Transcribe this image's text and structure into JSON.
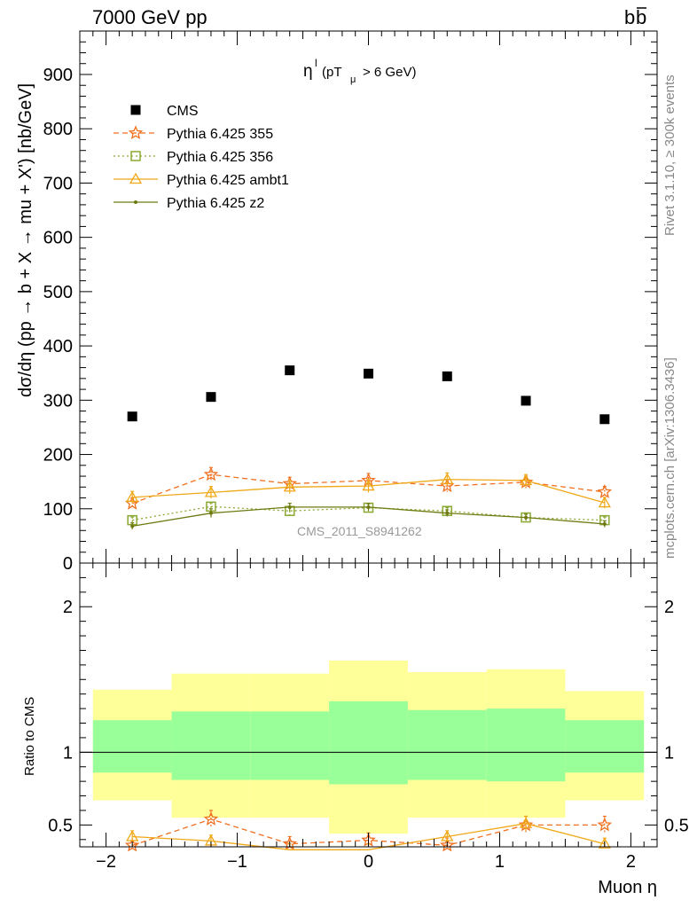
{
  "header": {
    "left": "7000 GeV pp",
    "right": "b",
    "right_bar": "b"
  },
  "side": {
    "rivet": "Rivet 3.1.10, ≥ 300k events",
    "mcplots": "mcplots.cern.ch [arXiv:1306.3436]"
  },
  "watermark": "CMS_2011_S8941262",
  "cut_label": {
    "eta": "η",
    "sup": "l",
    "text": "(pT",
    "sub": "μ",
    "rest": ">  6 GeV)"
  },
  "chart_data": [
    {
      "type": "scatter",
      "ylabel": "dσ/dη (pp → b + X → mu + X') [nb/GeV]",
      "xlim": [
        -2.2,
        2.2
      ],
      "ylim": [
        0,
        980
      ],
      "yticks": [
        0,
        100,
        200,
        300,
        400,
        500,
        600,
        700,
        800,
        900
      ],
      "ytick_labels": [
        "0",
        "100",
        "200",
        "300",
        "400",
        "500",
        "600",
        "700",
        "800",
        "900"
      ],
      "x": [
        -1.8,
        -1.2,
        -0.6,
        0.0,
        0.6,
        1.2,
        1.8
      ],
      "series": [
        {
          "name": "CMS",
          "color": "#000000",
          "marker": "square-filled",
          "values": [
            270,
            306,
            355,
            349,
            344,
            299,
            265
          ]
        },
        {
          "name": "Pythia 6.425 355",
          "color": "#f07020",
          "marker": "star",
          "dash": "6,4",
          "values": [
            110,
            163,
            146,
            152,
            142,
            149,
            131
          ],
          "err": [
            10,
            13,
            12,
            13,
            11,
            11,
            10
          ]
        },
        {
          "name": "Pythia 6.425 356",
          "color": "#8aa832",
          "marker": "square-open",
          "dash": "2,3",
          "values": [
            79,
            104,
            96,
            102,
            96,
            84,
            79
          ],
          "err": [
            6,
            7,
            7,
            7,
            6,
            6,
            6
          ]
        },
        {
          "name": "Pythia 6.425 ambt1",
          "color": "#f0a818",
          "marker": "triangle-open",
          "dash": "",
          "values": [
            121,
            130,
            140,
            142,
            154,
            152,
            111
          ],
          "err": [
            11,
            11,
            12,
            12,
            12,
            11,
            10
          ]
        },
        {
          "name": "Pythia 6.425 z2",
          "color": "#6e7a10",
          "marker": "dot",
          "dash": "",
          "values": [
            68,
            92,
            103,
            103,
            92,
            84,
            72
          ],
          "err": [
            6,
            8,
            7,
            7,
            6,
            6,
            6
          ]
        }
      ]
    },
    {
      "type": "scatter",
      "xlabel": "Muon η",
      "ylabel": "Ratio to CMS",
      "xlim": [
        -2.2,
        2.2
      ],
      "ylim": [
        0.35,
        2.3
      ],
      "xticks": [
        -2,
        -1,
        0,
        1,
        2
      ],
      "xtick_labels": [
        "−2",
        "−1",
        "0",
        "1",
        "2"
      ],
      "yticks": [
        0.5,
        1,
        2
      ],
      "ytick_labels": [
        "0.5",
        "1",
        "2"
      ],
      "bands": {
        "edges": [
          -2.1,
          -1.5,
          -0.9,
          -0.3,
          0.3,
          0.9,
          1.5,
          2.1
        ],
        "yellow_lo": [
          0.67,
          0.55,
          0.55,
          0.44,
          0.55,
          0.55,
          0.67
        ],
        "yellow_hi": [
          1.43,
          1.54,
          1.54,
          1.63,
          1.55,
          1.57,
          1.42
        ],
        "green_lo": [
          0.86,
          0.81,
          0.81,
          0.78,
          0.81,
          0.8,
          0.86
        ],
        "green_hi": [
          1.22,
          1.28,
          1.28,
          1.35,
          1.29,
          1.3,
          1.22
        ],
        "yellow_color": "#ffff99",
        "green_color": "#99ff99"
      },
      "x": [
        -1.8,
        -1.2,
        -0.6,
        0.0,
        0.6,
        1.2,
        1.8
      ],
      "series": [
        {
          "name": "Pythia 6.425 355",
          "color": "#f07020",
          "marker": "star",
          "dash": "6,4",
          "values": [
            0.36,
            0.54,
            0.37,
            0.395,
            0.36,
            0.5,
            0.5
          ],
          "err": [
            0.03,
            0.06,
            0.05,
            0.05,
            0.05,
            0.06,
            0.06
          ]
        },
        {
          "name": "Pythia 6.425 ambt1",
          "color": "#f0a818",
          "marker": "triangle-open",
          "dash": "",
          "values": [
            0.42,
            0.39,
            0.33,
            0.33,
            0.42,
            0.51,
            0.37
          ],
          "err": [
            0.04,
            0.04,
            0.04,
            0.04,
            0.04,
            0.05,
            0.04
          ]
        }
      ]
    }
  ]
}
